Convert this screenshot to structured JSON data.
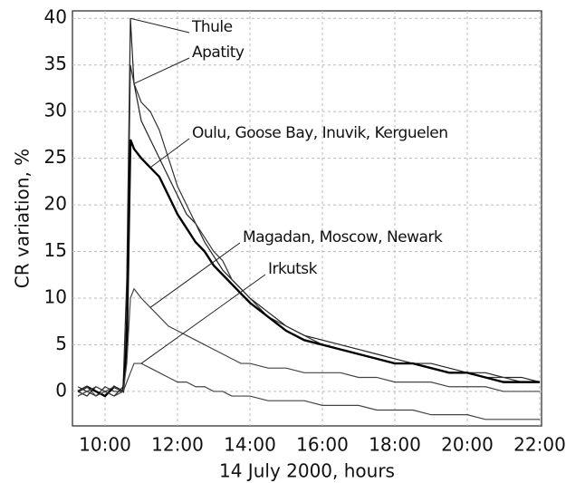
{
  "chart_data": {
    "type": "line",
    "xlabel": "14 July 2000, hours",
    "ylabel": "CR variation, %",
    "xlim": [
      9.1,
      22.05
    ],
    "ylim": [
      -3.7,
      40.8
    ],
    "xticks": [
      {
        "value": 10,
        "label": "10:00"
      },
      {
        "value": 12,
        "label": "12:00"
      },
      {
        "value": 14,
        "label": "14:00"
      },
      {
        "value": 16,
        "label": "16:00"
      },
      {
        "value": 18,
        "label": "18:00"
      },
      {
        "value": 20,
        "label": "20:00"
      },
      {
        "value": 22,
        "label": "22:00"
      }
    ],
    "yticks": [
      0,
      5,
      10,
      15,
      20,
      25,
      30,
      35,
      40
    ],
    "grid": true,
    "x": [
      9.25,
      9.5,
      9.75,
      10,
      10.25,
      10.5,
      10.6,
      10.7,
      10.8,
      11,
      11.25,
      11.5,
      11.75,
      12,
      12.25,
      12.5,
      12.75,
      13,
      13.25,
      13.5,
      13.75,
      14,
      14.5,
      15,
      15.5,
      16,
      16.5,
      17,
      17.5,
      18,
      18.5,
      19,
      19.5,
      20,
      20.5,
      21,
      21.5,
      22
    ],
    "series": [
      {
        "name": "Thule",
        "color": "#222222",
        "values": [
          0,
          -0.5,
          0.5,
          0,
          -0.5,
          0.5,
          12,
          40,
          33,
          29,
          27,
          25,
          23,
          21,
          19,
          18,
          16,
          14.5,
          13,
          12,
          11,
          10,
          8.5,
          7,
          6,
          5.5,
          5,
          4.5,
          4,
          3.5,
          3,
          3,
          2.5,
          2,
          2,
          1.5,
          1.5,
          1
        ]
      },
      {
        "name": "Apatity",
        "color": "#333333",
        "values": [
          0.5,
          0,
          -0.5,
          0.5,
          0,
          0,
          8,
          35,
          33,
          31,
          30,
          28,
          25,
          22,
          20,
          18,
          16.5,
          15,
          14,
          12,
          11,
          10,
          8,
          7,
          6,
          5,
          4.5,
          4,
          3.5,
          3,
          3,
          2.5,
          2,
          2,
          1.5,
          1.5,
          1,
          1
        ]
      },
      {
        "name": "Oulu, Goose Bay, Inuvik, Kerguelen",
        "color": "#000000",
        "values": [
          0,
          0.5,
          0,
          -0.5,
          0.5,
          0,
          5,
          27,
          26,
          25,
          24,
          23,
          21,
          19,
          17.5,
          16,
          15,
          13.5,
          12.5,
          11.5,
          10.5,
          9.5,
          8,
          6.5,
          5.5,
          5,
          4.5,
          4,
          3.5,
          3,
          3,
          2.5,
          2,
          2,
          1.5,
          1,
          1,
          1
        ]
      },
      {
        "name": "Magadan, Moscow, Newark",
        "color": "#444444",
        "values": [
          0,
          0.5,
          -0.5,
          0,
          0.5,
          0,
          3,
          10,
          11,
          10,
          9,
          8,
          7,
          6.5,
          6,
          5.5,
          5,
          4.5,
          4,
          3.5,
          3,
          3,
          2.5,
          2.5,
          2,
          2,
          2,
          1.5,
          1.5,
          1,
          1,
          1,
          0.5,
          0.5,
          0.5,
          0,
          0,
          0
        ]
      },
      {
        "name": "Irkutsk",
        "color": "#444444",
        "values": [
          -0.5,
          0,
          0.5,
          0,
          -0.5,
          0,
          1,
          2,
          3,
          3,
          2.5,
          2,
          1.5,
          1,
          1,
          0.5,
          0.5,
          0,
          0,
          -0.5,
          -0.5,
          -0.5,
          -1,
          -1,
          -1,
          -1.5,
          -1.5,
          -1.5,
          -2,
          -2,
          -2,
          -2.5,
          -2.5,
          -2.5,
          -3,
          -3,
          -3,
          -3
        ]
      }
    ]
  }
}
